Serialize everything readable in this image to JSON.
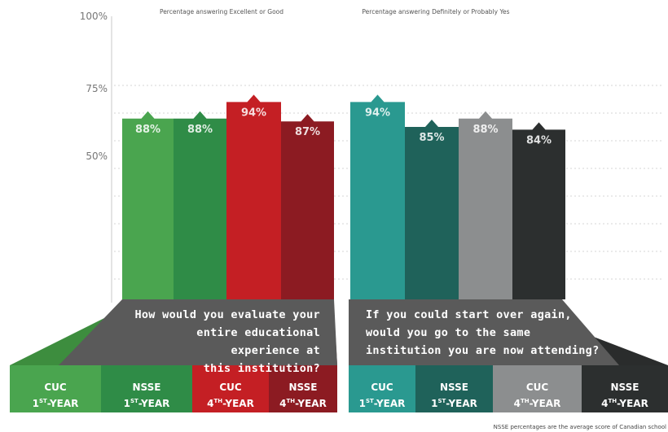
{
  "chart_data": [
    {
      "type": "bar",
      "title": "Percentage answering Excellent or Good",
      "categories": [
        "CUC 1ST-YEAR",
        "NSSE 1ST-YEAR",
        "CUC 4TH-YEAR",
        "NSSE 4TH-YEAR"
      ],
      "values": [
        88,
        88,
        94,
        87
      ],
      "value_labels": [
        "88%",
        "88%",
        "94%",
        "87%"
      ],
      "colors": [
        "#4aa54f",
        "#2f8c47",
        "#c41f24",
        "#8c1b22"
      ],
      "question": [
        "How would you evaluate your",
        "entire educational experience at",
        "this institution?"
      ]
    },
    {
      "type": "bar",
      "title": "Percentage answering Definitely or Probably Yes",
      "categories": [
        "CUC 1ST-YEAR",
        "NSSE 1ST-YEAR",
        "CUC 4TH-YEAR",
        "NSSE 4TH-YEAR"
      ],
      "values": [
        94,
        85,
        88,
        84
      ],
      "value_labels": [
        "94%",
        "85%",
        "88%",
        "84%"
      ],
      "colors": [
        "#2a9990",
        "#1f625a",
        "#8c8e8f",
        "#2c2f2f"
      ],
      "question": [
        "If you could start over again,",
        "would you go to the same",
        "institution you are now attending?"
      ]
    }
  ],
  "y_axis": {
    "ticks": [
      {
        "value": 100,
        "label": "100%"
      },
      {
        "value": 75,
        "label": "75%"
      },
      {
        "value": 50,
        "label": "50%"
      }
    ]
  },
  "footnote": "NSSE percentages are the average score of Canadian school",
  "labels": [
    {
      "top": "CUC",
      "sup": "ST",
      "base": "1",
      "rest": "-YEAR"
    },
    {
      "top": "NSSE",
      "sup": "ST",
      "base": "1",
      "rest": "-YEAR"
    },
    {
      "top": "CUC",
      "sup": "TH",
      "base": "4",
      "rest": "-YEAR"
    },
    {
      "top": "NSSE",
      "sup": "TH",
      "base": "4",
      "rest": "-YEAR"
    },
    {
      "top": "CUC",
      "sup": "ST",
      "base": "1",
      "rest": "-YEAR"
    },
    {
      "top": "NSSE",
      "sup": "ST",
      "base": "1",
      "rest": "-YEAR"
    },
    {
      "top": "CUC",
      "sup": "TH",
      "base": "4",
      "rest": "-YEAR"
    },
    {
      "top": "NSSE",
      "sup": "TH",
      "base": "4",
      "rest": "-YEAR"
    }
  ]
}
